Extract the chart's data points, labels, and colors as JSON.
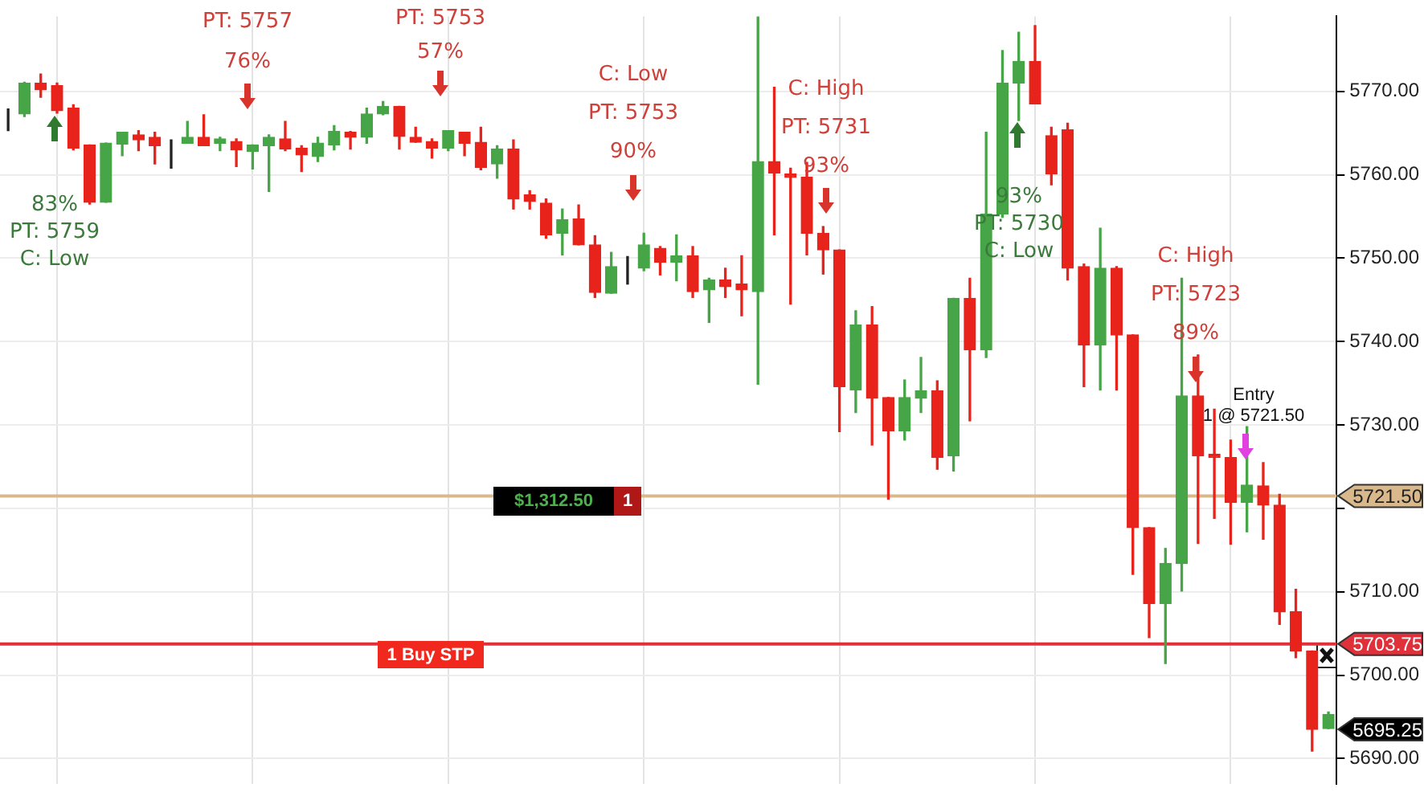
{
  "chart_data": {
    "type": "candlestick",
    "categories": [
      null,
      null,
      null,
      null,
      null,
      null,
      null,
      null,
      null,
      null,
      null,
      null,
      null,
      null,
      null,
      null,
      null,
      null,
      null,
      null,
      null,
      null,
      null,
      null,
      null,
      null,
      null,
      null,
      null,
      null,
      null,
      null,
      null,
      null,
      null,
      null,
      null,
      null,
      null,
      null,
      null,
      null,
      null,
      null,
      null,
      null,
      null,
      null,
      null,
      null,
      null,
      null,
      null,
      null,
      null,
      null,
      null,
      null,
      null,
      null,
      null,
      null,
      null,
      null,
      null,
      null,
      null,
      null,
      null,
      null,
      null,
      null,
      null,
      null,
      null,
      null,
      null,
      null,
      null,
      null,
      null,
      null
    ],
    "ohlc": [
      [
        5767.4,
        5767.9,
        5765.3,
        5767.4
      ],
      [
        5767.3,
        5771.1,
        5767.0,
        5771.0
      ],
      [
        5771.0,
        5772.1,
        5769.3,
        5770.2
      ],
      [
        5770.7,
        5771.0,
        5767.4,
        5767.7
      ],
      [
        5768.0,
        5768.4,
        5763.0,
        5763.2
      ],
      [
        5763.6,
        5763.6,
        5756.5,
        5756.7
      ],
      [
        5756.7,
        5763.8,
        5756.7,
        5763.8
      ],
      [
        5763.7,
        5765.1,
        5762.3,
        5765.1
      ],
      [
        5764.8,
        5765.3,
        5762.9,
        5764.2
      ],
      [
        5764.5,
        5765.1,
        5761.3,
        5763.5
      ],
      [
        5764.0,
        5764.2,
        5760.8,
        5764.0
      ],
      [
        5763.8,
        5766.4,
        5763.8,
        5764.5
      ],
      [
        5764.5,
        5767.2,
        5763.5,
        5763.5
      ],
      [
        5763.8,
        5764.5,
        5762.9,
        5764.3
      ],
      [
        5764.0,
        5764.3,
        5761.0,
        5763.0
      ],
      [
        5762.8,
        5763.6,
        5760.7,
        5763.6
      ],
      [
        5763.5,
        5764.8,
        5758.0,
        5764.5
      ],
      [
        5764.3,
        5766.4,
        5762.9,
        5763.1
      ],
      [
        5763.2,
        5763.5,
        5760.4,
        5762.4
      ],
      [
        5762.2,
        5764.5,
        5761.6,
        5763.8
      ],
      [
        5763.6,
        5765.9,
        5763.0,
        5765.2
      ],
      [
        5765.1,
        5765.2,
        5763.1,
        5764.5
      ],
      [
        5764.5,
        5768.0,
        5763.8,
        5767.3
      ],
      [
        5767.3,
        5768.8,
        5767.2,
        5768.2
      ],
      [
        5768.2,
        5768.2,
        5763.1,
        5764.6
      ],
      [
        5764.5,
        5765.7,
        5763.9,
        5763.9
      ],
      [
        5764.0,
        5764.3,
        5762.0,
        5763.2
      ],
      [
        5763.2,
        5765.3,
        5762.9,
        5765.3
      ],
      [
        5765.1,
        5765.1,
        5762.3,
        5763.8
      ],
      [
        5763.9,
        5765.7,
        5760.6,
        5760.9
      ],
      [
        5761.3,
        5763.5,
        5759.6,
        5763.1
      ],
      [
        5763.1,
        5764.2,
        5755.9,
        5757.1
      ],
      [
        5757.6,
        5758.1,
        5755.9,
        5756.8
      ],
      [
        5756.6,
        5757.1,
        5752.4,
        5752.8
      ],
      [
        5753.0,
        5755.9,
        5750.4,
        5754.6
      ],
      [
        5754.7,
        5756.4,
        5751.6,
        5751.6
      ],
      [
        5751.6,
        5752.7,
        5745.3,
        5745.9
      ],
      [
        5745.8,
        5750.7,
        5745.8,
        5749.0
      ],
      [
        5749.0,
        5750.2,
        5746.9,
        5749.0
      ],
      [
        5748.8,
        5753.0,
        5748.5,
        5751.6
      ],
      [
        5751.2,
        5751.4,
        5748.0,
        5749.5
      ],
      [
        5749.5,
        5752.8,
        5747.3,
        5750.3
      ],
      [
        5750.3,
        5751.4,
        5745.3,
        5746.0
      ],
      [
        5746.2,
        5747.6,
        5742.3,
        5747.4
      ],
      [
        5747.4,
        5748.8,
        5745.3,
        5746.6
      ],
      [
        5746.9,
        5750.3,
        5743.1,
        5746.2
      ],
      [
        5746.0,
        5779.0,
        5734.9,
        5761.6
      ],
      [
        5761.6,
        5770.5,
        5752.8,
        5760.2
      ],
      [
        5760.1,
        5760.8,
        5744.5,
        5759.7
      ],
      [
        5759.7,
        5761.5,
        5750.4,
        5753.0
      ],
      [
        5753.0,
        5753.8,
        5748.1,
        5751.0
      ],
      [
        5751.0,
        5751.0,
        5729.2,
        5734.6
      ],
      [
        5734.2,
        5743.7,
        5731.5,
        5742.0
      ],
      [
        5742.0,
        5744.2,
        5727.6,
        5733.2
      ],
      [
        5733.3,
        5733.3,
        5721.1,
        5729.3
      ],
      [
        5729.3,
        5735.4,
        5728.2,
        5733.3
      ],
      [
        5733.2,
        5738.1,
        5731.5,
        5734.1
      ],
      [
        5734.1,
        5735.3,
        5724.7,
        5726.1
      ],
      [
        5726.3,
        5745.2,
        5724.5,
        5745.2
      ],
      [
        5745.2,
        5747.6,
        5730.5,
        5739.0
      ],
      [
        5739.0,
        5765.1,
        5738.1,
        5755.3
      ],
      [
        5755.3,
        5774.9,
        5754.9,
        5771.0
      ],
      [
        5771.0,
        5777.1,
        5766.5,
        5773.6
      ],
      [
        5773.6,
        5777.9,
        5768.5,
        5768.5
      ],
      [
        5764.7,
        5765.7,
        5758.8,
        5760.1
      ],
      [
        5765.4,
        5766.2,
        5747.4,
        5748.8
      ],
      [
        5749.0,
        5749.3,
        5734.6,
        5739.6
      ],
      [
        5739.6,
        5753.6,
        5734.2,
        5748.8
      ],
      [
        5748.8,
        5749.0,
        5734.2,
        5740.8
      ],
      [
        5740.8,
        5740.8,
        5712.1,
        5717.7
      ],
      [
        5717.7,
        5717.7,
        5704.5,
        5708.6
      ],
      [
        5708.6,
        5715.2,
        5701.4,
        5713.4
      ],
      [
        5713.4,
        5747.6,
        5710.1,
        5733.5
      ],
      [
        5733.5,
        5738.4,
        5715.8,
        5726.3
      ],
      [
        5726.5,
        5731.9,
        5718.8,
        5726.1
      ],
      [
        5726.1,
        5728.2,
        5715.7,
        5720.7
      ],
      [
        5720.7,
        5729.8,
        5717.2,
        5722.8
      ],
      [
        5722.7,
        5725.5,
        5716.3,
        5720.4
      ],
      [
        5720.4,
        5721.7,
        5706.1,
        5707.6
      ],
      [
        5707.6,
        5710.3,
        5702.1,
        5702.9
      ],
      [
        5702.9,
        5702.9,
        5690.9,
        5693.5
      ],
      [
        5693.6,
        5695.6,
        5693.6,
        5695.3
      ]
    ],
    "colors": [
      "#222222",
      "#46a546",
      "#e8231b",
      "#e8231b",
      "#e8231b",
      "#e8231b",
      "#46a546",
      "#46a546",
      "#e8231b",
      "#e8231b",
      "#222222",
      "#46a546",
      "#e8231b",
      "#46a546",
      "#e8231b",
      "#46a546",
      "#46a546",
      "#e8231b",
      "#e8231b",
      "#46a546",
      "#46a546",
      "#e8231b",
      "#46a546",
      "#46a546",
      "#e8231b",
      "#e8231b",
      "#e8231b",
      "#46a546",
      "#e8231b",
      "#e8231b",
      "#46a546",
      "#e8231b",
      "#e8231b",
      "#e8231b",
      "#46a546",
      "#e8231b",
      "#e8231b",
      "#46a546",
      "#222222",
      "#46a546",
      "#e8231b",
      "#46a546",
      "#e8231b",
      "#46a546",
      "#e8231b",
      "#e8231b",
      "#46a546",
      "#e8231b",
      "#e8231b",
      "#e8231b",
      "#e8231b",
      "#e8231b",
      "#46a546",
      "#e8231b",
      "#e8231b",
      "#46a546",
      "#46a546",
      "#e8231b",
      "#46a546",
      "#e8231b",
      "#46a546",
      "#46a546",
      "#46a546",
      "#e8231b",
      "#e8231b",
      "#e8231b",
      "#e8231b",
      "#46a546",
      "#e8231b",
      "#e8231b",
      "#e8231b",
      "#46a546",
      "#46a546",
      "#e8231b",
      "#e8231b",
      "#e8231b",
      "#46a546",
      "#e8231b",
      "#e8231b",
      "#e8231b",
      "#e8231b",
      "#46a546"
    ],
    "ylim": [
      5687,
      5779
    ],
    "yticks": [
      {
        "value": 5690,
        "label": "5690.00"
      },
      {
        "value": 5700,
        "label": "5700.00"
      },
      {
        "value": 5710,
        "label": "5710.00"
      },
      {
        "value": 5720,
        "label": null
      },
      {
        "value": 5730,
        "label": "5730.00"
      },
      {
        "value": 5740,
        "label": "5740.00"
      },
      {
        "value": 5750,
        "label": "5750.00"
      },
      {
        "value": 5760,
        "label": "5760.00"
      },
      {
        "value": 5770,
        "label": "5770.00"
      }
    ],
    "tick_labels": "y",
    "grid": true,
    "ref_lines": [
      {
        "axis": "y",
        "value": 5721.5,
        "label": "5721.50",
        "color": "#d9b88c"
      },
      {
        "axis": "y",
        "value": 5703.75,
        "label": "5703.75",
        "color": "#e0303a"
      }
    ],
    "annotations": [
      "83%\nPT: 5759\nC: Low",
      "PT: 5757\n76%",
      "PT: 5753\n57%",
      "C: Low\nPT: 5753\n90%",
      "C: High\nPT: 5731\n93%",
      "93%\nPT: 5730\nC: Low",
      "C: High\nPT: 5723\n89%",
      "Entry\n1 @ 5721.50",
      "$1,312.50",
      "1",
      "1 Buy STP",
      "5695.25"
    ]
  }
}
